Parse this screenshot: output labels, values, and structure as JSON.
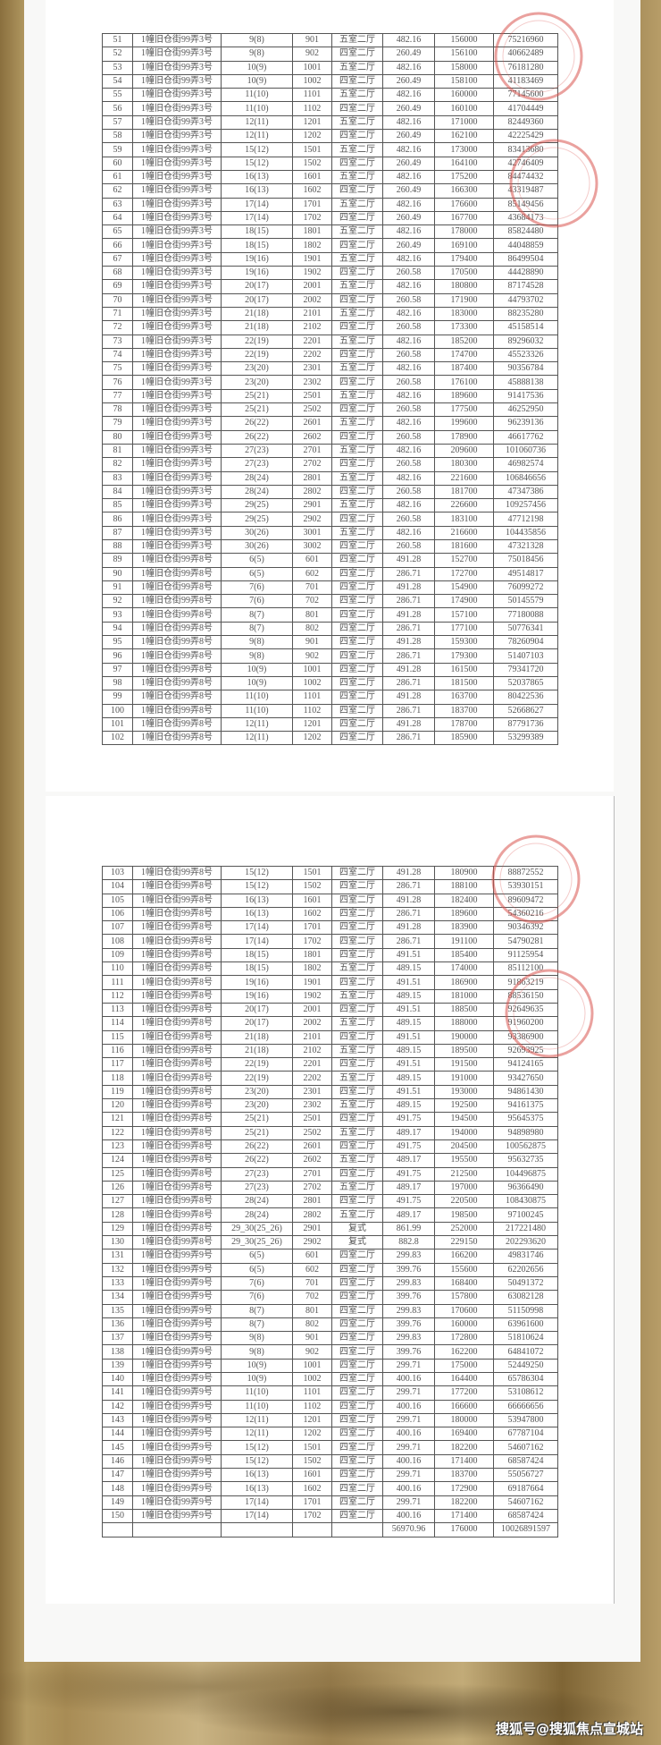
{
  "stamp_color": "#d9534f",
  "background_color": "#a88c55",
  "watermark": "搜狐号@搜狐焦点宣城站",
  "table1": {
    "rows": [
      [
        "51",
        "1幢旧仓街99弄3号",
        "9(8)",
        "901",
        "五室二厅",
        "482.16",
        "156000",
        "75216960"
      ],
      [
        "52",
        "1幢旧仓街99弄3号",
        "9(8)",
        "902",
        "四室二厅",
        "260.49",
        "156100",
        "40662489"
      ],
      [
        "53",
        "1幢旧仓街99弄3号",
        "10(9)",
        "1001",
        "五室二厅",
        "482.16",
        "158000",
        "76181280"
      ],
      [
        "54",
        "1幢旧仓街99弄3号",
        "10(9)",
        "1002",
        "四室二厅",
        "260.49",
        "158100",
        "41183469"
      ],
      [
        "55",
        "1幢旧仓街99弄3号",
        "11(10)",
        "1101",
        "五室二厅",
        "482.16",
        "160000",
        "77145600"
      ],
      [
        "56",
        "1幢旧仓街99弄3号",
        "11(10)",
        "1102",
        "四室二厅",
        "260.49",
        "160100",
        "41704449"
      ],
      [
        "57",
        "1幢旧仓街99弄3号",
        "12(11)",
        "1201",
        "五室二厅",
        "482.16",
        "171000",
        "82449360"
      ],
      [
        "58",
        "1幢旧仓街99弄3号",
        "12(11)",
        "1202",
        "四室二厅",
        "260.49",
        "162100",
        "42225429"
      ],
      [
        "59",
        "1幢旧仓街99弄3号",
        "15(12)",
        "1501",
        "五室二厅",
        "482.16",
        "173000",
        "83413680"
      ],
      [
        "60",
        "1幢旧仓街99弄3号",
        "15(12)",
        "1502",
        "四室二厅",
        "260.49",
        "164100",
        "42746409"
      ],
      [
        "61",
        "1幢旧仓街99弄3号",
        "16(13)",
        "1601",
        "五室二厅",
        "482.16",
        "175200",
        "84474432"
      ],
      [
        "62",
        "1幢旧仓街99弄3号",
        "16(13)",
        "1602",
        "四室二厅",
        "260.49",
        "166300",
        "43319487"
      ],
      [
        "63",
        "1幢旧仓街99弄3号",
        "17(14)",
        "1701",
        "五室二厅",
        "482.16",
        "176600",
        "85149456"
      ],
      [
        "64",
        "1幢旧仓街99弄3号",
        "17(14)",
        "1702",
        "四室二厅",
        "260.49",
        "167700",
        "43684173"
      ],
      [
        "65",
        "1幢旧仓街99弄3号",
        "18(15)",
        "1801",
        "五室二厅",
        "482.16",
        "178000",
        "85824480"
      ],
      [
        "66",
        "1幢旧仓街99弄3号",
        "18(15)",
        "1802",
        "四室二厅",
        "260.49",
        "169100",
        "44048859"
      ],
      [
        "67",
        "1幢旧仓街99弄3号",
        "19(16)",
        "1901",
        "五室二厅",
        "482.16",
        "179400",
        "86499504"
      ],
      [
        "68",
        "1幢旧仓街99弄3号",
        "19(16)",
        "1902",
        "四室二厅",
        "260.58",
        "170500",
        "44428890"
      ],
      [
        "69",
        "1幢旧仓街99弄3号",
        "20(17)",
        "2001",
        "五室二厅",
        "482.16",
        "180800",
        "87174528"
      ],
      [
        "70",
        "1幢旧仓街99弄3号",
        "20(17)",
        "2002",
        "四室二厅",
        "260.58",
        "171900",
        "44793702"
      ],
      [
        "71",
        "1幢旧仓街99弄3号",
        "21(18)",
        "2101",
        "五室二厅",
        "482.16",
        "183000",
        "88235280"
      ],
      [
        "72",
        "1幢旧仓街99弄3号",
        "21(18)",
        "2102",
        "四室二厅",
        "260.58",
        "173300",
        "45158514"
      ],
      [
        "73",
        "1幢旧仓街99弄3号",
        "22(19)",
        "2201",
        "五室二厅",
        "482.16",
        "185200",
        "89296032"
      ],
      [
        "74",
        "1幢旧仓街99弄3号",
        "22(19)",
        "2202",
        "四室二厅",
        "260.58",
        "174700",
        "45523326"
      ],
      [
        "75",
        "1幢旧仓街99弄3号",
        "23(20)",
        "2301",
        "五室二厅",
        "482.16",
        "187400",
        "90356784"
      ],
      [
        "76",
        "1幢旧仓街99弄3号",
        "23(20)",
        "2302",
        "四室二厅",
        "260.58",
        "176100",
        "45888138"
      ],
      [
        "77",
        "1幢旧仓街99弄3号",
        "25(21)",
        "2501",
        "五室二厅",
        "482.16",
        "189600",
        "91417536"
      ],
      [
        "78",
        "1幢旧仓街99弄3号",
        "25(21)",
        "2502",
        "四室二厅",
        "260.58",
        "177500",
        "46252950"
      ],
      [
        "79",
        "1幢旧仓街99弄3号",
        "26(22)",
        "2601",
        "五室二厅",
        "482.16",
        "199600",
        "96239136"
      ],
      [
        "80",
        "1幢旧仓街99弄3号",
        "26(22)",
        "2602",
        "四室二厅",
        "260.58",
        "178900",
        "46617762"
      ],
      [
        "81",
        "1幢旧仓街99弄3号",
        "27(23)",
        "2701",
        "五室二厅",
        "482.16",
        "209600",
        "101060736"
      ],
      [
        "82",
        "1幢旧仓街99弄3号",
        "27(23)",
        "2702",
        "四室二厅",
        "260.58",
        "180300",
        "46982574"
      ],
      [
        "83",
        "1幢旧仓街99弄3号",
        "28(24)",
        "2801",
        "五室二厅",
        "482.16",
        "221600",
        "106846656"
      ],
      [
        "84",
        "1幢旧仓街99弄3号",
        "28(24)",
        "2802",
        "四室二厅",
        "260.58",
        "181700",
        "47347386"
      ],
      [
        "85",
        "1幢旧仓街99弄3号",
        "29(25)",
        "2901",
        "五室二厅",
        "482.16",
        "226600",
        "109257456"
      ],
      [
        "86",
        "1幢旧仓街99弄3号",
        "29(25)",
        "2902",
        "四室二厅",
        "260.58",
        "183100",
        "47712198"
      ],
      [
        "87",
        "1幢旧仓街99弄3号",
        "30(26)",
        "3001",
        "五室二厅",
        "482.16",
        "216600",
        "104435856"
      ],
      [
        "88",
        "1幢旧仓街99弄3号",
        "30(26)",
        "3002",
        "四室二厅",
        "260.58",
        "181600",
        "47321328"
      ],
      [
        "89",
        "1幢旧仓街99弄8号",
        "6(5)",
        "601",
        "四室二厅",
        "491.28",
        "152700",
        "75018456"
      ],
      [
        "90",
        "1幢旧仓街99弄8号",
        "6(5)",
        "602",
        "四室二厅",
        "286.71",
        "172700",
        "49514817"
      ],
      [
        "91",
        "1幢旧仓街99弄8号",
        "7(6)",
        "701",
        "四室二厅",
        "491.28",
        "154900",
        "76099272"
      ],
      [
        "92",
        "1幢旧仓街99弄8号",
        "7(6)",
        "702",
        "四室二厅",
        "286.71",
        "174900",
        "50145579"
      ],
      [
        "93",
        "1幢旧仓街99弄8号",
        "8(7)",
        "801",
        "四室二厅",
        "491.28",
        "157100",
        "77180088"
      ],
      [
        "94",
        "1幢旧仓街99弄8号",
        "8(7)",
        "802",
        "四室二厅",
        "286.71",
        "177100",
        "50776341"
      ],
      [
        "95",
        "1幢旧仓街99弄8号",
        "9(8)",
        "901",
        "四室二厅",
        "491.28",
        "159300",
        "78260904"
      ],
      [
        "96",
        "1幢旧仓街99弄8号",
        "9(8)",
        "902",
        "四室二厅",
        "286.71",
        "179300",
        "51407103"
      ],
      [
        "97",
        "1幢旧仓街99弄8号",
        "10(9)",
        "1001",
        "四室二厅",
        "491.28",
        "161500",
        "79341720"
      ],
      [
        "98",
        "1幢旧仓街99弄8号",
        "10(9)",
        "1002",
        "四室二厅",
        "286.71",
        "181500",
        "52037865"
      ],
      [
        "99",
        "1幢旧仓街99弄8号",
        "11(10)",
        "1101",
        "四室二厅",
        "491.28",
        "163700",
        "80422536"
      ],
      [
        "100",
        "1幢旧仓街99弄8号",
        "11(10)",
        "1102",
        "四室二厅",
        "286.71",
        "183700",
        "52668627"
      ],
      [
        "101",
        "1幢旧仓街99弄8号",
        "12(11)",
        "1201",
        "四室二厅",
        "491.28",
        "178700",
        "87791736"
      ],
      [
        "102",
        "1幢旧仓街99弄8号",
        "12(11)",
        "1202",
        "四室二厅",
        "286.71",
        "185900",
        "53299389"
      ]
    ]
  },
  "table2": {
    "rows": [
      [
        "103",
        "1幢旧仓街99弄8号",
        "15(12)",
        "1501",
        "四室二厅",
        "491.28",
        "180900",
        "88872552"
      ],
      [
        "104",
        "1幢旧仓街99弄8号",
        "15(12)",
        "1502",
        "四室二厅",
        "286.71",
        "188100",
        "53930151"
      ],
      [
        "105",
        "1幢旧仓街99弄8号",
        "16(13)",
        "1601",
        "四室二厅",
        "491.28",
        "182400",
        "89609472"
      ],
      [
        "106",
        "1幢旧仓街99弄8号",
        "16(13)",
        "1602",
        "四室二厅",
        "286.71",
        "189600",
        "54360216"
      ],
      [
        "107",
        "1幢旧仓街99弄8号",
        "17(14)",
        "1701",
        "四室二厅",
        "491.28",
        "183900",
        "90346392"
      ],
      [
        "108",
        "1幢旧仓街99弄8号",
        "17(14)",
        "1702",
        "四室二厅",
        "286.71",
        "191100",
        "54790281"
      ],
      [
        "109",
        "1幢旧仓街99弄8号",
        "18(15)",
        "1801",
        "四室二厅",
        "491.51",
        "185400",
        "91125954"
      ],
      [
        "110",
        "1幢旧仓街99弄8号",
        "18(15)",
        "1802",
        "五室二厅",
        "489.15",
        "174000",
        "85112100"
      ],
      [
        "111",
        "1幢旧仓街99弄8号",
        "19(16)",
        "1901",
        "四室二厅",
        "491.51",
        "186900",
        "91863219"
      ],
      [
        "112",
        "1幢旧仓街99弄8号",
        "19(16)",
        "1902",
        "五室二厅",
        "489.15",
        "181000",
        "88536150"
      ],
      [
        "113",
        "1幢旧仓街99弄8号",
        "20(17)",
        "2001",
        "四室二厅",
        "491.51",
        "188500",
        "92649635"
      ],
      [
        "114",
        "1幢旧仓街99弄8号",
        "20(17)",
        "2002",
        "五室二厅",
        "489.15",
        "188000",
        "91960200"
      ],
      [
        "115",
        "1幢旧仓街99弄8号",
        "21(18)",
        "2101",
        "四室二厅",
        "491.51",
        "190000",
        "93386900"
      ],
      [
        "116",
        "1幢旧仓街99弄8号",
        "21(18)",
        "2102",
        "五室二厅",
        "489.15",
        "189500",
        "92693925"
      ],
      [
        "117",
        "1幢旧仓街99弄8号",
        "22(19)",
        "2201",
        "四室二厅",
        "491.51",
        "191500",
        "94124165"
      ],
      [
        "118",
        "1幢旧仓街99弄8号",
        "22(19)",
        "2202",
        "五室二厅",
        "489.15",
        "191000",
        "93427650"
      ],
      [
        "119",
        "1幢旧仓街99弄8号",
        "23(20)",
        "2301",
        "四室二厅",
        "491.51",
        "193000",
        "94861430"
      ],
      [
        "120",
        "1幢旧仓街99弄8号",
        "23(20)",
        "2302",
        "五室二厅",
        "489.15",
        "192500",
        "94161375"
      ],
      [
        "121",
        "1幢旧仓街99弄8号",
        "25(21)",
        "2501",
        "四室二厅",
        "491.75",
        "194500",
        "95645375"
      ],
      [
        "122",
        "1幢旧仓街99弄8号",
        "25(21)",
        "2502",
        "五室二厅",
        "489.17",
        "194000",
        "94898980"
      ],
      [
        "123",
        "1幢旧仓街99弄8号",
        "26(22)",
        "2601",
        "四室二厅",
        "491.75",
        "204500",
        "100562875"
      ],
      [
        "124",
        "1幢旧仓街99弄8号",
        "26(22)",
        "2602",
        "五室二厅",
        "489.17",
        "195500",
        "95632735"
      ],
      [
        "125",
        "1幢旧仓街99弄8号",
        "27(23)",
        "2701",
        "四室二厅",
        "491.75",
        "212500",
        "104496875"
      ],
      [
        "126",
        "1幢旧仓街99弄8号",
        "27(23)",
        "2702",
        "五室二厅",
        "489.17",
        "197000",
        "96366490"
      ],
      [
        "127",
        "1幢旧仓街99弄8号",
        "28(24)",
        "2801",
        "四室二厅",
        "491.75",
        "220500",
        "108430875"
      ],
      [
        "128",
        "1幢旧仓街99弄8号",
        "28(24)",
        "2802",
        "五室二厅",
        "489.17",
        "198500",
        "97100245"
      ],
      [
        "129",
        "1幢旧仓街99弄8号",
        "29_30(25_26)",
        "2901",
        "复式",
        "861.99",
        "252000",
        "217221480"
      ],
      [
        "130",
        "1幢旧仓街99弄8号",
        "29_30(25_26)",
        "2902",
        "复式",
        "882.8",
        "229150",
        "202293620"
      ],
      [
        "131",
        "1幢旧仓街99弄9号",
        "6(5)",
        "601",
        "四室二厅",
        "299.83",
        "166200",
        "49831746"
      ],
      [
        "132",
        "1幢旧仓街99弄9号",
        "6(5)",
        "602",
        "四室二厅",
        "399.76",
        "155600",
        "62202656"
      ],
      [
        "133",
        "1幢旧仓街99弄9号",
        "7(6)",
        "701",
        "四室二厅",
        "299.83",
        "168400",
        "50491372"
      ],
      [
        "134",
        "1幢旧仓街99弄9号",
        "7(6)",
        "702",
        "四室二厅",
        "399.76",
        "157800",
        "63082128"
      ],
      [
        "135",
        "1幢旧仓街99弄9号",
        "8(7)",
        "801",
        "四室二厅",
        "299.83",
        "170600",
        "51150998"
      ],
      [
        "136",
        "1幢旧仓街99弄9号",
        "8(7)",
        "802",
        "四室二厅",
        "399.76",
        "160000",
        "63961600"
      ],
      [
        "137",
        "1幢旧仓街99弄9号",
        "9(8)",
        "901",
        "四室二厅",
        "299.83",
        "172800",
        "51810624"
      ],
      [
        "138",
        "1幢旧仓街99弄9号",
        "9(8)",
        "902",
        "四室二厅",
        "399.76",
        "162200",
        "64841072"
      ],
      [
        "139",
        "1幢旧仓街99弄9号",
        "10(9)",
        "1001",
        "四室二厅",
        "299.71",
        "175000",
        "52449250"
      ],
      [
        "140",
        "1幢旧仓街99弄9号",
        "10(9)",
        "1002",
        "四室二厅",
        "400.16",
        "164400",
        "65786304"
      ],
      [
        "141",
        "1幢旧仓街99弄9号",
        "11(10)",
        "1101",
        "四室二厅",
        "299.71",
        "177200",
        "53108612"
      ],
      [
        "142",
        "1幢旧仓街99弄9号",
        "11(10)",
        "1102",
        "四室二厅",
        "400.16",
        "166600",
        "66666656"
      ],
      [
        "143",
        "1幢旧仓街99弄9号",
        "12(11)",
        "1201",
        "四室二厅",
        "299.71",
        "180000",
        "53947800"
      ],
      [
        "144",
        "1幢旧仓街99弄9号",
        "12(11)",
        "1202",
        "四室二厅",
        "400.16",
        "169400",
        "67787104"
      ],
      [
        "145",
        "1幢旧仓街99弄9号",
        "15(12)",
        "1501",
        "四室二厅",
        "299.71",
        "182200",
        "54607162"
      ],
      [
        "146",
        "1幢旧仓街99弄9号",
        "15(12)",
        "1502",
        "四室二厅",
        "400.16",
        "171400",
        "68587424"
      ],
      [
        "147",
        "1幢旧仓街99弄9号",
        "16(13)",
        "1601",
        "四室二厅",
        "299.71",
        "183700",
        "55056727"
      ],
      [
        "148",
        "1幢旧仓街99弄9号",
        "16(13)",
        "1602",
        "四室二厅",
        "400.16",
        "172900",
        "69187664"
      ],
      [
        "149",
        "1幢旧仓街99弄9号",
        "17(14)",
        "1701",
        "四室二厅",
        "299.71",
        "182200",
        "54607162"
      ],
      [
        "150",
        "1幢旧仓街99弄9号",
        "17(14)",
        "1702",
        "四室二厅",
        "400.16",
        "171400",
        "68587424"
      ]
    ],
    "total": [
      "",
      "",
      "",
      "",
      "",
      "56970.96",
      "176000",
      "10026891597"
    ]
  }
}
